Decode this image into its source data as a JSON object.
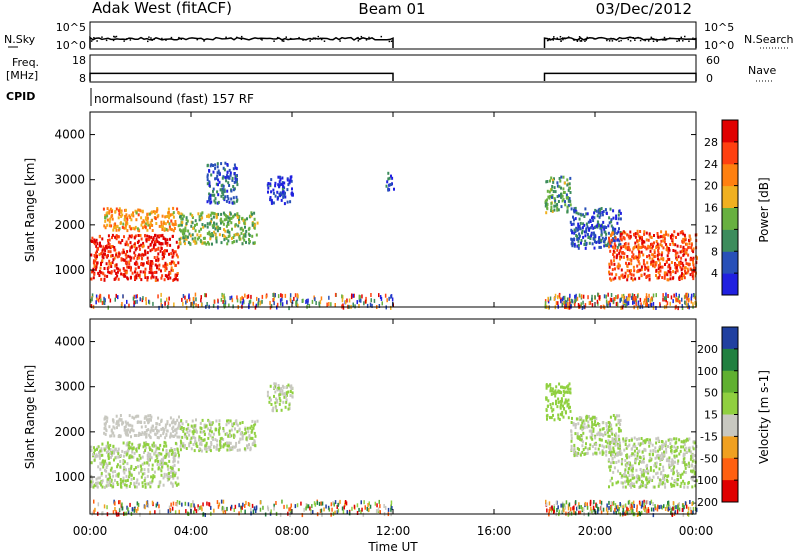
{
  "header": {
    "station": "Adak West (fitACF)",
    "beam": "Beam 01",
    "date": "03/Dec/2012"
  },
  "noise_panel": {
    "left_label": "N.Sky",
    "right_label": "N.Search",
    "ticks": [
      "10^5",
      "10^0"
    ]
  },
  "freq_panel": {
    "left_label_line1": "Freq.",
    "left_label_line2": "[MHz]",
    "left_ticks": [
      "18",
      "8"
    ],
    "right_label": "Nave",
    "right_ticks": [
      "60",
      "0"
    ]
  },
  "cpid": {
    "label": "CPID",
    "text": "normalsound (fast) 157 RF"
  },
  "time_axis": {
    "title": "Time UT",
    "ticks": [
      "00:00",
      "04:00",
      "08:00",
      "12:00",
      "16:00",
      "20:00",
      "00:00"
    ]
  },
  "chart_data": [
    {
      "type": "heatmap",
      "title": "Power",
      "xlabel": "Time UT",
      "ylabel": "Slant Range [km]",
      "x_range_hours": [
        0,
        24
      ],
      "ylim": [
        180,
        4500
      ],
      "y_ticks": [
        "1000",
        "2000",
        "3000",
        "4000"
      ],
      "colorbar": {
        "label": "Power [dB]",
        "ticks": [
          "4",
          "8",
          "12",
          "16",
          "20",
          "24",
          "28"
        ],
        "range": [
          0,
          32
        ],
        "colors": [
          "#2020e0",
          "#2850b8",
          "#3c8c5c",
          "#68b040",
          "#f0b020",
          "#ff8010",
          "#ff4010",
          "#e00000"
        ]
      },
      "data_gap_hours": [
        12,
        18
      ],
      "regions": [
        {
          "t": [
            0.0,
            3.5
          ],
          "r": [
            800,
            1800
          ],
          "level": 28
        },
        {
          "t": [
            0.5,
            3.5
          ],
          "r": [
            1900,
            2400
          ],
          "level": 20
        },
        {
          "t": [
            3.5,
            6.6
          ],
          "r": [
            1600,
            2300
          ],
          "level": 14
        },
        {
          "t": [
            4.6,
            5.8
          ],
          "r": [
            2500,
            3400
          ],
          "level": 6
        },
        {
          "t": [
            7.0,
            8.0
          ],
          "r": [
            2500,
            3100
          ],
          "level": 4
        },
        {
          "t": [
            11.7,
            12.0
          ],
          "r": [
            2800,
            3200
          ],
          "level": 4
        },
        {
          "t": [
            18.0,
            19.0
          ],
          "r": [
            2300,
            3100
          ],
          "level": 12
        },
        {
          "t": [
            19.0,
            21.0
          ],
          "r": [
            1500,
            2400
          ],
          "level": 6
        },
        {
          "t": [
            20.5,
            24.0
          ],
          "r": [
            800,
            1900
          ],
          "level": 26
        }
      ]
    },
    {
      "type": "heatmap",
      "title": "Velocity",
      "xlabel": "Time UT",
      "ylabel": "Slant Range [km]",
      "x_range_hours": [
        0,
        24
      ],
      "ylim": [
        180,
        4500
      ],
      "y_ticks": [
        "1000",
        "2000",
        "3000",
        "4000"
      ],
      "colorbar": {
        "label": "Velocity [m s-1]",
        "ticks": [
          "200",
          "100",
          "50",
          "15",
          "-15",
          "-50",
          "-100",
          "-200"
        ],
        "range": [
          -250,
          250
        ],
        "colors": [
          "#2040a0",
          "#208040",
          "#60b030",
          "#90d040",
          "#c8c8c0",
          "#f0a020",
          "#ff6010",
          "#e00000"
        ]
      },
      "data_gap_hours": [
        12,
        18
      ],
      "regions": [
        {
          "t": [
            0.0,
            3.5
          ],
          "r": [
            800,
            1800
          ],
          "level": 0
        },
        {
          "t": [
            0.5,
            3.5
          ],
          "r": [
            1900,
            2400
          ],
          "level": -20
        },
        {
          "t": [
            3.5,
            6.6
          ],
          "r": [
            1600,
            2300
          ],
          "level": 0
        },
        {
          "t": [
            7.0,
            8.0
          ],
          "r": [
            2500,
            3100
          ],
          "level": 0
        },
        {
          "t": [
            18.0,
            19.0
          ],
          "r": [
            2300,
            3100
          ],
          "level": 40
        },
        {
          "t": [
            19.0,
            21.0
          ],
          "r": [
            1500,
            2400
          ],
          "level": 0
        },
        {
          "t": [
            20.5,
            24.0
          ],
          "r": [
            800,
            1900
          ],
          "level": 0
        }
      ]
    }
  ]
}
